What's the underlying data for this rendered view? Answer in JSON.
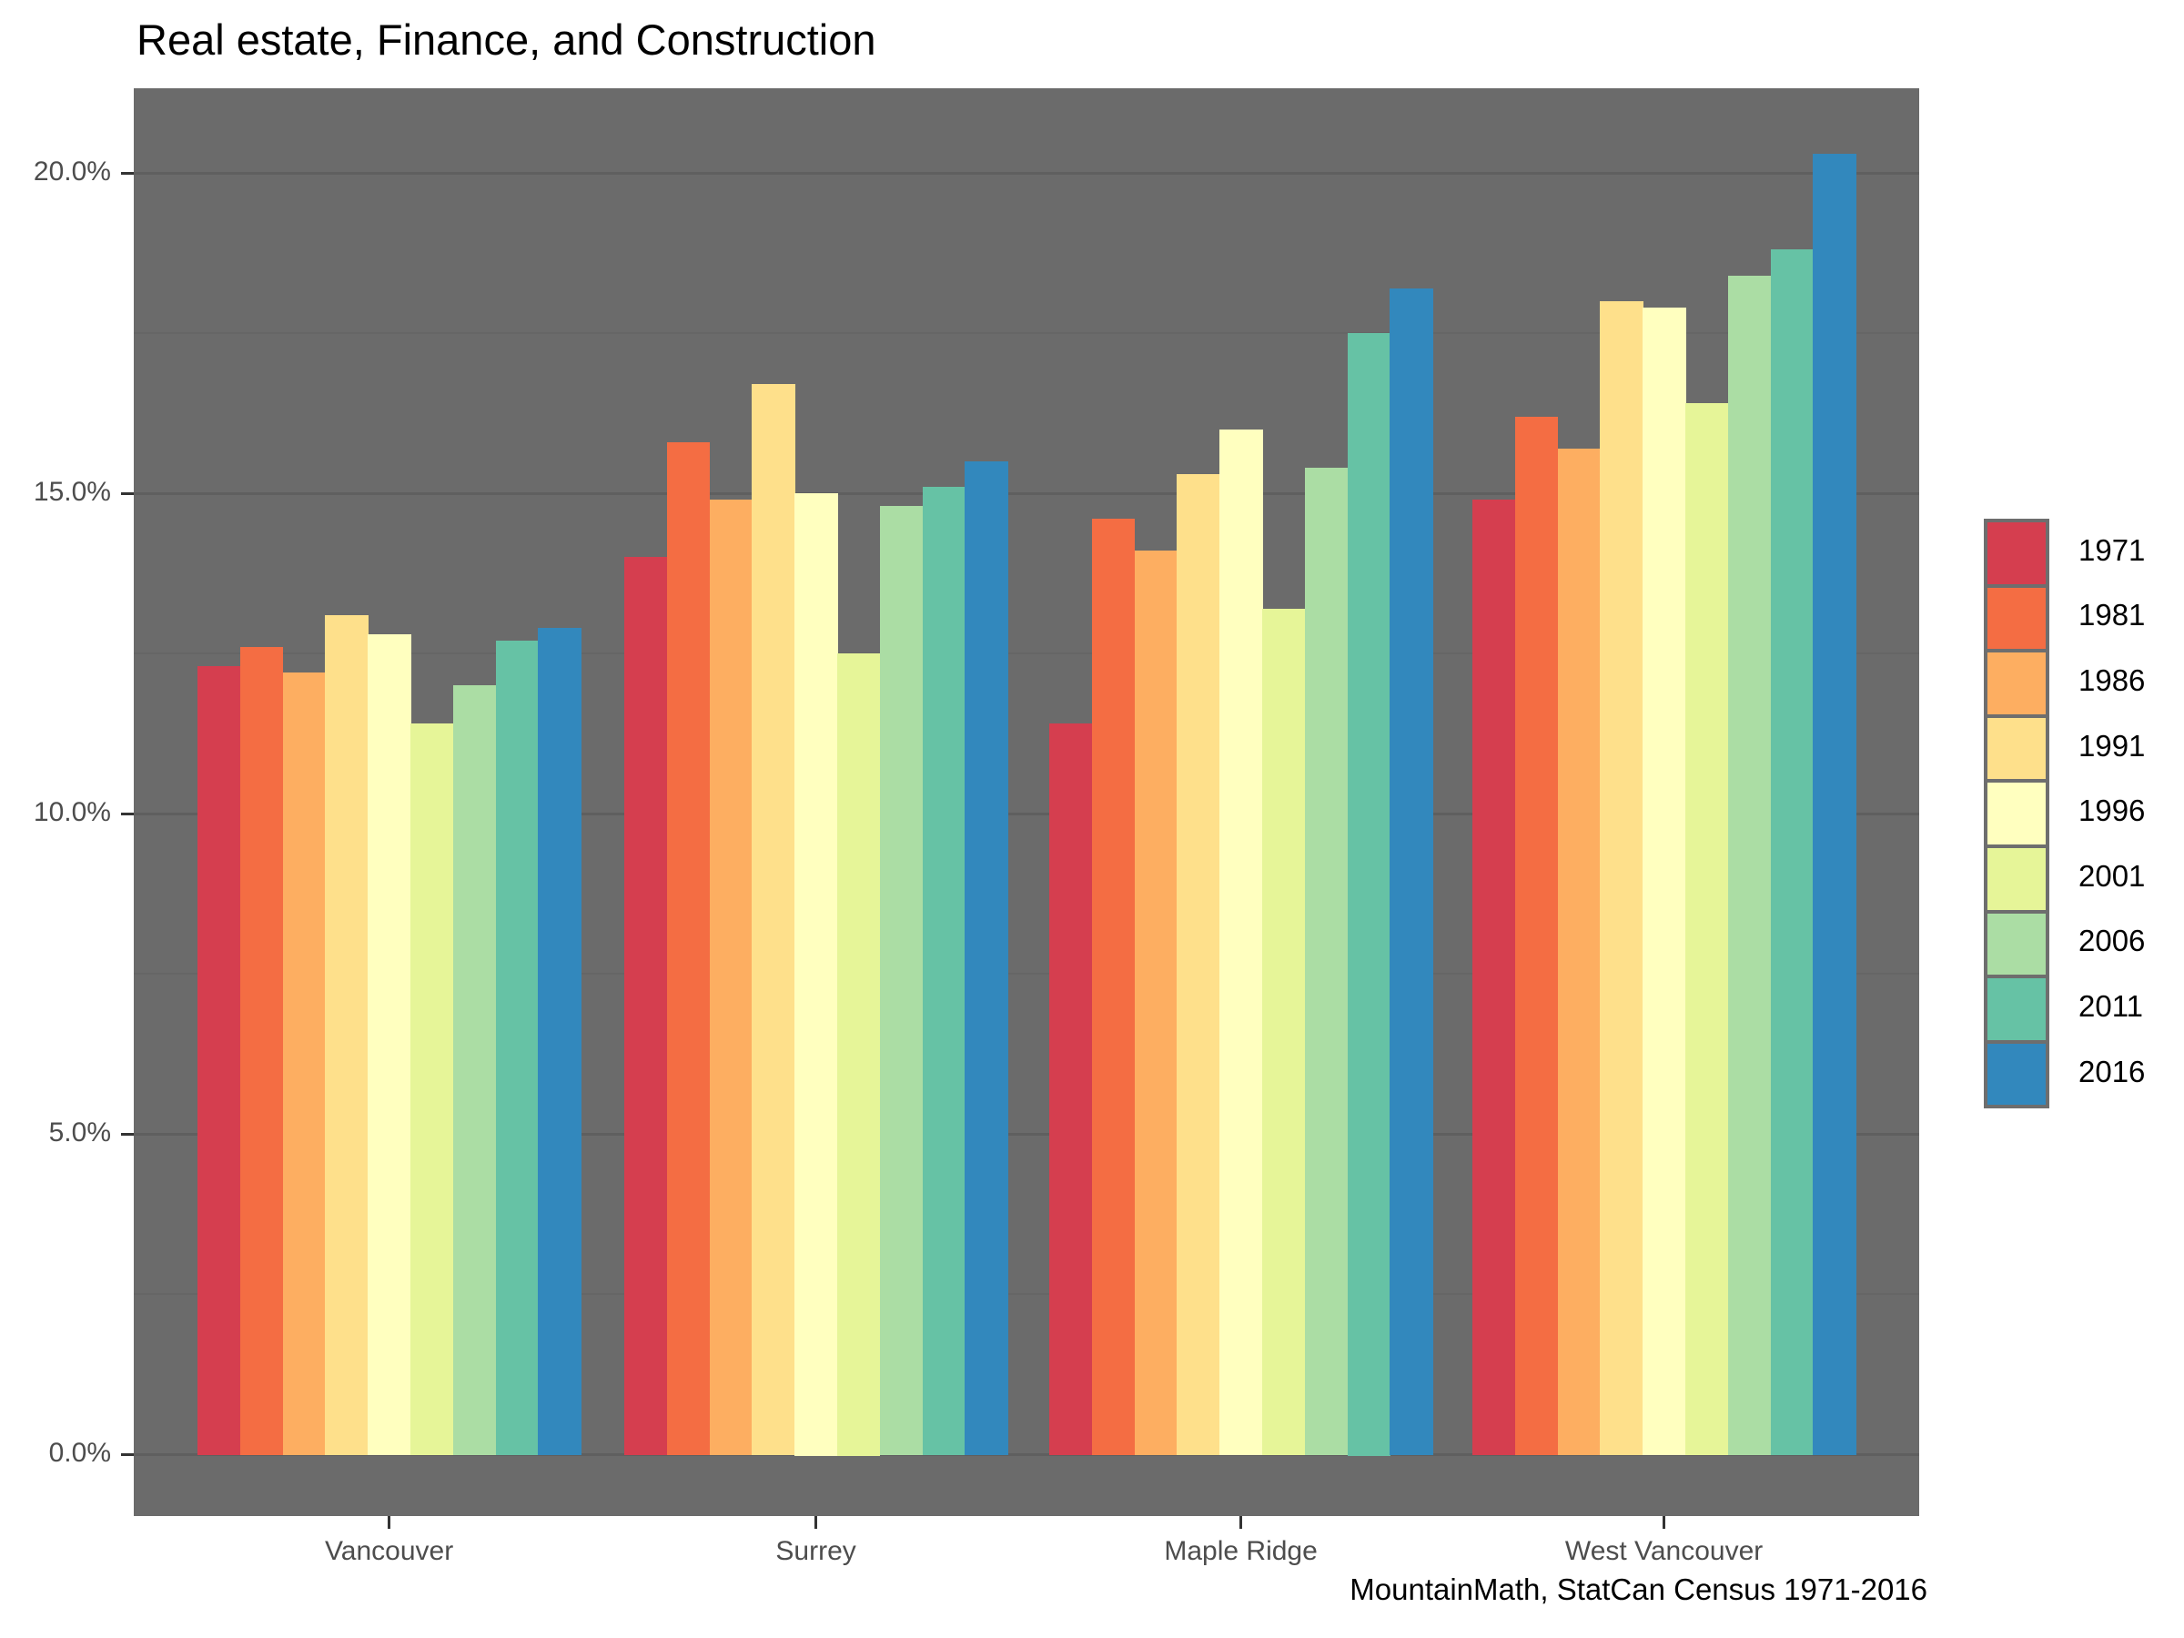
{
  "title": "Real estate, Finance, and Construction",
  "caption": "MountainMath, StatCan Census 1971-2016",
  "chart_data": {
    "type": "bar",
    "title": "Real estate, Finance, and Construction",
    "xlabel": "",
    "ylabel": "",
    "categories": [
      "Vancouver",
      "Surrey",
      "Maple Ridge",
      "West Vancouver"
    ],
    "series": [
      {
        "name": "1971",
        "color": "#D53E4F",
        "values": [
          12.3,
          14.0,
          11.4,
          14.9
        ]
      },
      {
        "name": "1981",
        "color": "#F46D43",
        "values": [
          12.6,
          15.8,
          14.6,
          16.2
        ]
      },
      {
        "name": "1986",
        "color": "#FDAE61",
        "values": [
          12.2,
          14.9,
          14.1,
          15.7
        ]
      },
      {
        "name": "1991",
        "color": "#FEE08B",
        "values": [
          13.1,
          16.7,
          15.3,
          18.0
        ]
      },
      {
        "name": "1996",
        "color": "#FFFFBF",
        "values": [
          12.8,
          15.0,
          16.0,
          17.9
        ]
      },
      {
        "name": "2001",
        "color": "#E6F598",
        "values": [
          11.4,
          12.5,
          13.2,
          16.4
        ]
      },
      {
        "name": "2006",
        "color": "#ABDDA4",
        "values": [
          12.0,
          14.8,
          15.4,
          18.4
        ]
      },
      {
        "name": "2011",
        "color": "#66C2A5",
        "values": [
          12.7,
          15.1,
          17.5,
          18.8
        ]
      },
      {
        "name": "2016",
        "color": "#3288BD",
        "values": [
          12.9,
          15.5,
          18.2,
          20.3
        ]
      }
    ],
    "y_major_ticks": [
      0,
      5,
      10,
      15,
      20
    ],
    "y_minor_ticks": [
      2.5,
      7.5,
      12.5,
      17.5
    ],
    "y_tick_labels": [
      "0.0%",
      "5.0%",
      "10.0%",
      "15.0%",
      "20.0%"
    ],
    "ylim": [
      0,
      21.3
    ],
    "grid": "major+minor",
    "legend_position": "right",
    "panel_background": "#6B6B6B",
    "grid_major_color": "#5F5F5F",
    "grid_minor_color": "#666666"
  }
}
